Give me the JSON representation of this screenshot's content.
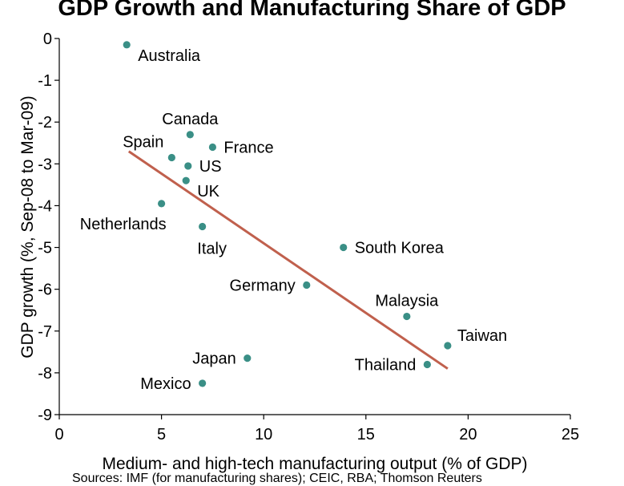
{
  "chart_data": {
    "type": "scatter",
    "title": "GDP Growth and Manufacturing Share of GDP",
    "xlabel": "Medium- and high-tech manufacturing output (% of GDP)",
    "ylabel": "GDP growth (%, Sep-08 to Mar-09)",
    "xlim": [
      0,
      25
    ],
    "ylim": [
      -9,
      0
    ],
    "xticks": [
      0,
      5,
      10,
      15,
      20,
      25
    ],
    "yticks": [
      0,
      -1,
      -2,
      -3,
      -4,
      -5,
      -6,
      -7,
      -8,
      -9
    ],
    "grid": false,
    "point_color": "#3a8f86",
    "trend_color": "#c0604d",
    "points": [
      {
        "label": "Australia",
        "x": 3.3,
        "y": -0.15,
        "label_pos": "below-right"
      },
      {
        "label": "Canada",
        "x": 6.4,
        "y": -2.3,
        "label_pos": "above"
      },
      {
        "label": "Spain",
        "x": 5.5,
        "y": -2.85,
        "label_pos": "above-left"
      },
      {
        "label": "France",
        "x": 7.5,
        "y": -2.6,
        "label_pos": "right"
      },
      {
        "label": "US",
        "x": 6.3,
        "y": -3.05,
        "label_pos": "right"
      },
      {
        "label": "UK",
        "x": 6.2,
        "y": -3.4,
        "label_pos": "below-right"
      },
      {
        "label": "Netherlands",
        "x": 5.0,
        "y": -3.95,
        "label_pos": "below-left"
      },
      {
        "label": "Italy",
        "x": 7.0,
        "y": -4.5,
        "label_pos": "below"
      },
      {
        "label": "South Korea",
        "x": 13.9,
        "y": -5.0,
        "label_pos": "right"
      },
      {
        "label": "Germany",
        "x": 12.1,
        "y": -5.9,
        "label_pos": "left"
      },
      {
        "label": "Malaysia",
        "x": 17.0,
        "y": -6.65,
        "label_pos": "above"
      },
      {
        "label": "Taiwan",
        "x": 19.0,
        "y": -7.35,
        "label_pos": "above-right"
      },
      {
        "label": "Thailand",
        "x": 18.0,
        "y": -7.8,
        "label_pos": "left"
      },
      {
        "label": "Japan",
        "x": 9.2,
        "y": -7.65,
        "label_pos": "left"
      },
      {
        "label": "Mexico",
        "x": 7.0,
        "y": -8.25,
        "label_pos": "left"
      }
    ],
    "trendline": {
      "x": [
        3.4,
        19.0
      ],
      "y": [
        -2.7,
        -7.9
      ]
    }
  },
  "source": "Sources: IMF (for manufacturing shares); CEIC, RBA; Thomson Reuters"
}
